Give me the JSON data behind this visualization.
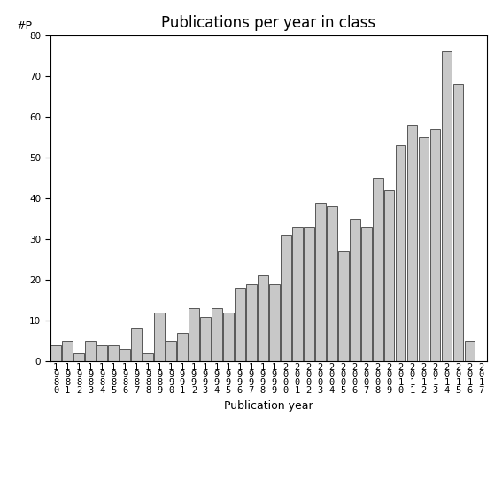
{
  "title": "Publications per year in class",
  "xlabel": "Publication year",
  "ylabel": "#P",
  "years": [
    "1980",
    "1981",
    "1982",
    "1983",
    "1984",
    "1985",
    "1986",
    "1987",
    "1988",
    "1989",
    "1990",
    "1991",
    "1992",
    "1993",
    "1994",
    "1995",
    "1996",
    "1997",
    "1998",
    "1999",
    "2000",
    "2001",
    "2002",
    "2003",
    "2004",
    "2005",
    "2006",
    "2007",
    "2008",
    "2009",
    "2010",
    "2011",
    "2012",
    "2013",
    "2014",
    "2015",
    "2016",
    "2017"
  ],
  "values": [
    4,
    5,
    2,
    5,
    4,
    4,
    3,
    8,
    2,
    12,
    5,
    7,
    13,
    11,
    13,
    12,
    18,
    19,
    21,
    19,
    31,
    33,
    33,
    39,
    38,
    27,
    35,
    33,
    45,
    42,
    53,
    58,
    55,
    57,
    76,
    68,
    5,
    0
  ],
  "bar_color": "#c8c8c8",
  "bar_edgecolor": "#404040",
  "ylim": [
    0,
    80
  ],
  "yticks": [
    0,
    10,
    20,
    30,
    40,
    50,
    60,
    70,
    80
  ],
  "background_color": "#ffffff",
  "title_fontsize": 12,
  "axis_label_fontsize": 9,
  "tick_label_fontsize": 7.5
}
